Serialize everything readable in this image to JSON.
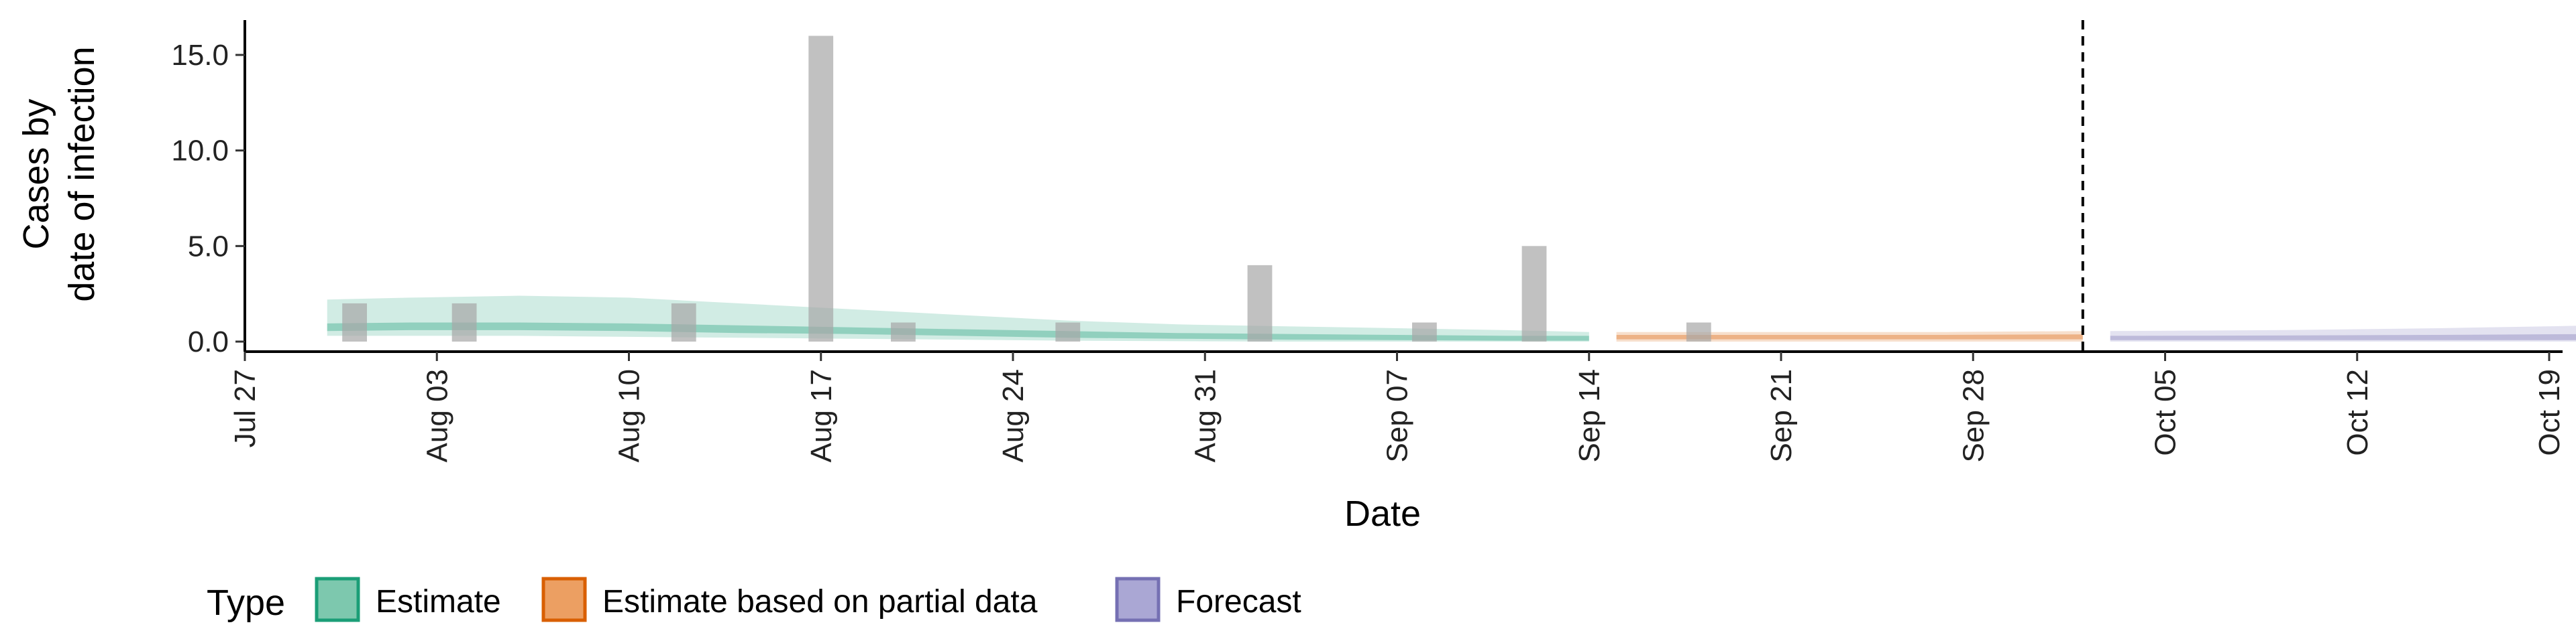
{
  "chart_data": {
    "type": "bar",
    "title": "",
    "xlabel": "Date",
    "ylabel_lines": [
      "Cases by",
      "date of infection"
    ],
    "x_is_date": true,
    "xlim": [
      "2020-07-27",
      "2020-10-19"
    ],
    "ylim": [
      0,
      16.8
    ],
    "y_ticks": [
      0,
      5,
      10,
      15
    ],
    "y_tick_labels": [
      "0.0",
      "5.0",
      "10.0",
      "15.0"
    ],
    "x_ticks": [
      "2020-07-27",
      "2020-08-03",
      "2020-08-10",
      "2020-08-17",
      "2020-08-24",
      "2020-08-31",
      "2020-09-07",
      "2020-09-14",
      "2020-09-21",
      "2020-09-28",
      "2020-10-05",
      "2020-10-12",
      "2020-10-19"
    ],
    "x_tick_labels": [
      "Jul 27",
      "Aug 03",
      "Aug 10",
      "Aug 17",
      "Aug 24",
      "Aug 31",
      "Sep 07",
      "Sep 14",
      "Sep 21",
      "Sep 28",
      "Oct 05",
      "Oct 12",
      "Oct 19"
    ],
    "grid": false,
    "bar_color": "#a6a6a6",
    "bars": [
      {
        "date": "2020-07-31",
        "value": 2
      },
      {
        "date": "2020-08-04",
        "value": 2
      },
      {
        "date": "2020-08-12",
        "value": 2
      },
      {
        "date": "2020-08-17",
        "value": 16
      },
      {
        "date": "2020-08-20",
        "value": 1
      },
      {
        "date": "2020-08-26",
        "value": 1
      },
      {
        "date": "2020-09-02",
        "value": 4
      },
      {
        "date": "2020-09-08",
        "value": 1
      },
      {
        "date": "2020-09-12",
        "value": 5
      },
      {
        "date": "2020-09-18",
        "value": 1
      }
    ],
    "vline": {
      "date": "2020-10-02",
      "style": "dashed"
    },
    "bands": [
      {
        "type": "Estimate",
        "color": "#1b9e77",
        "dates": [
          "2020-07-30",
          "2020-08-02",
          "2020-08-06",
          "2020-08-10",
          "2020-08-14",
          "2020-08-18",
          "2020-08-22",
          "2020-08-26",
          "2020-08-30",
          "2020-09-03",
          "2020-09-07",
          "2020-09-11",
          "2020-09-14"
        ],
        "outer_upper": [
          2.2,
          2.3,
          2.4,
          2.3,
          2.0,
          1.7,
          1.4,
          1.1,
          0.9,
          0.8,
          0.7,
          0.6,
          0.5
        ],
        "outer_lower": [
          0.3,
          0.3,
          0.3,
          0.25,
          0.2,
          0.15,
          0.1,
          0.05,
          0.02,
          0.0,
          0.0,
          0.0,
          0.0
        ],
        "inner_upper": [
          0.95,
          1.0,
          1.0,
          0.95,
          0.85,
          0.75,
          0.65,
          0.55,
          0.45,
          0.4,
          0.35,
          0.3,
          0.3
        ],
        "inner_lower": [
          0.55,
          0.6,
          0.6,
          0.55,
          0.45,
          0.4,
          0.3,
          0.2,
          0.15,
          0.1,
          0.08,
          0.05,
          0.05
        ]
      },
      {
        "type": "Estimate based on partial data",
        "color": "#d95f02",
        "dates": [
          "2020-09-15",
          "2020-09-21",
          "2020-09-27",
          "2020-10-02"
        ],
        "outer_upper": [
          0.5,
          0.5,
          0.5,
          0.55
        ],
        "outer_lower": [
          0.0,
          0.0,
          0.0,
          0.0
        ],
        "inner_upper": [
          0.35,
          0.35,
          0.35,
          0.38
        ],
        "inner_lower": [
          0.12,
          0.12,
          0.12,
          0.12
        ]
      },
      {
        "type": "Forecast",
        "color": "#7570b3",
        "dates": [
          "2020-10-03",
          "2020-10-09",
          "2020-10-15",
          "2020-10-21"
        ],
        "outer_upper": [
          0.55,
          0.6,
          0.7,
          0.85
        ],
        "outer_lower": [
          0.0,
          0.0,
          0.0,
          0.0
        ],
        "inner_upper": [
          0.3,
          0.32,
          0.35,
          0.4
        ],
        "inner_lower": [
          0.08,
          0.08,
          0.08,
          0.08
        ]
      }
    ],
    "legend": {
      "title": "Type",
      "placement": "bottom",
      "items": [
        {
          "label": "Estimate",
          "fill": "#7dc8ae",
          "stroke": "#1b9e77"
        },
        {
          "label": "Estimate based on partial data",
          "fill": "#ec9f62",
          "stroke": "#d95f02"
        },
        {
          "label": "Forecast",
          "fill": "#aaa7d4",
          "stroke": "#7570b3"
        }
      ]
    }
  }
}
